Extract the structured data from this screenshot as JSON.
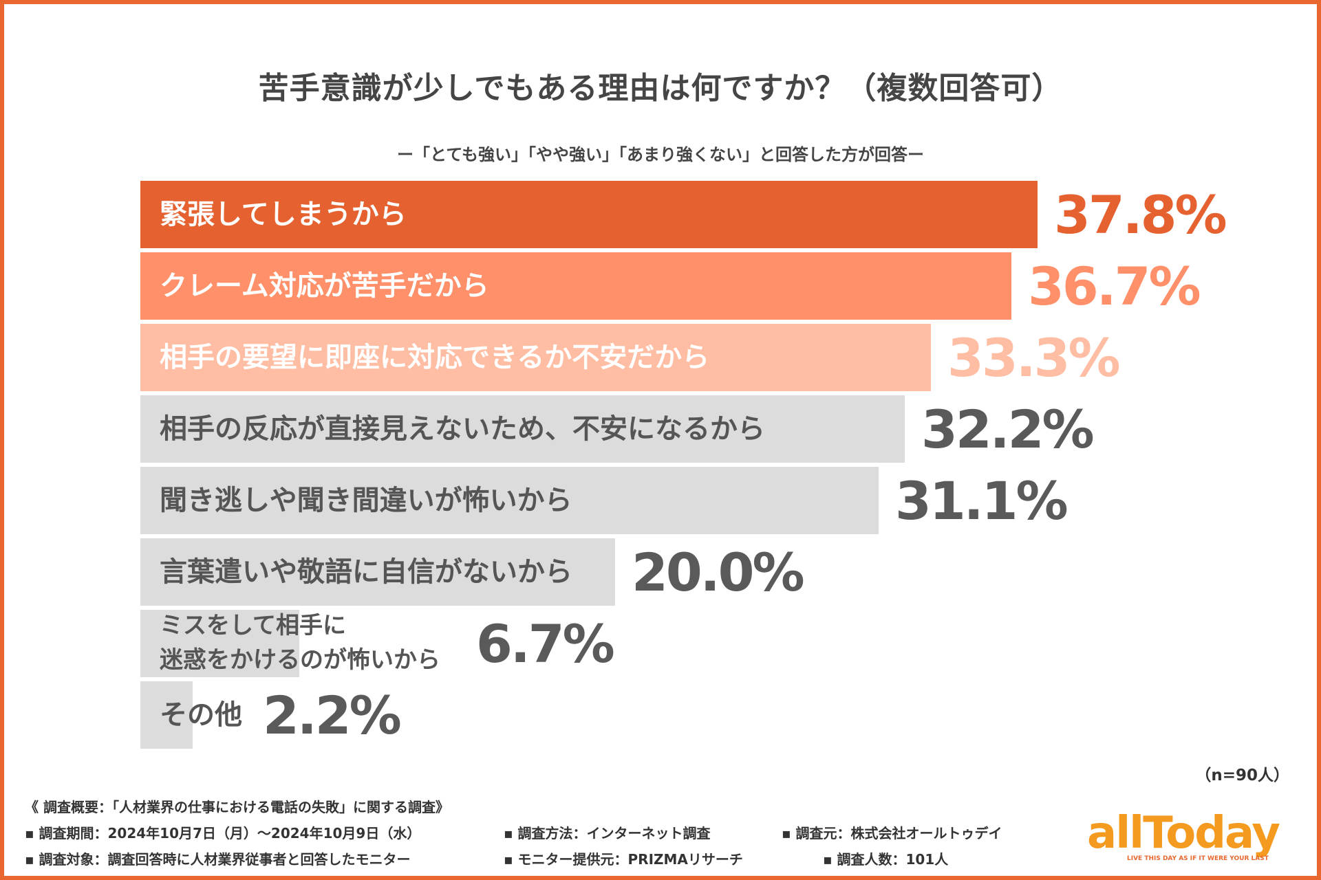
{
  "title": "苦手意識が少しでもある理由は何ですか？（複数回答可）",
  "subtitle": "ー「とても強い」「やや強い」「あまり強くない」と回答した方が回答ー",
  "sample_note": "（n=90人）",
  "colors": {
    "top1": "#e5612f",
    "top2": "#ff906a",
    "top3": "#ffbda3",
    "other": "#dcdcdc",
    "label_dark": "#555555",
    "value_dark": "#5a5a5a",
    "frame": "#e8682f"
  },
  "chart_data": {
    "type": "bar",
    "orientation": "horizontal",
    "title": "苦手意識が少しでもある理由は何ですか？（複数回答可）",
    "categories": [
      "緊張してしまうから",
      "クレーム対応が苦手だから",
      "相手の要望に即座に対応できるか不安だから",
      "相手の反応が直接見えないため、不安になるから",
      "聞き逃しや聞き間違いが怖いから",
      "言葉遣いや敬語に自信がないから",
      "ミスをして相手に\n迷惑をかけるのが怖いから",
      "その他"
    ],
    "values": [
      37.8,
      36.7,
      33.3,
      32.2,
      31.1,
      20.0,
      6.7,
      2.2
    ],
    "value_labels": [
      "37.8%",
      "36.7%",
      "33.3%",
      "32.2%",
      "31.1%",
      "20.0%",
      "6.7%",
      "2.2%"
    ],
    "unit": "%",
    "xlim": [
      0,
      37.8
    ],
    "grid": false,
    "legend": "none"
  },
  "footer": {
    "heading": "《 調査概要：「人材業界の仕事における電話の失敗」に関する調査》",
    "period": "▪ 調査期間：2024年10月7日（月）〜2024年10月9日（水）",
    "method": "▪ 調査方法：インターネット調査",
    "source": "▪ 調査元：株式会社オールトゥデイ",
    "target": "▪ 調査対象：調査回答時に人材業界従事者と回答したモニター",
    "provider": "▪ モニター提供元：PRIZMAリサーチ",
    "count": "▪ 調査人数：101人"
  },
  "logo": {
    "name": "allToday",
    "tagline": "LIVE THIS DAY AS IF IT WERE YOUR LAST"
  }
}
